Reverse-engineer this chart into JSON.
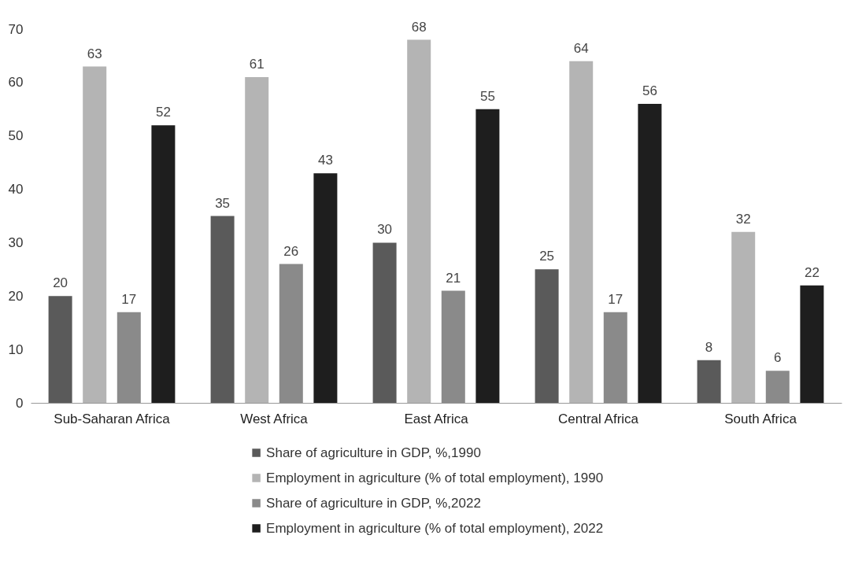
{
  "chart_data": {
    "type": "bar",
    "categories": [
      "Sub-Saharan Africa",
      "West Africa",
      "East Africa",
      "Central Africa",
      "South Africa"
    ],
    "series": [
      {
        "name": "Share of agriculture in GDP, %,1990",
        "color": "#5a5a5a",
        "values": [
          20,
          35,
          30,
          25,
          8
        ]
      },
      {
        "name": "Employment in agriculture (% of total employment), 1990",
        "color": "#b4b4b4",
        "values": [
          63,
          61,
          68,
          64,
          32
        ]
      },
      {
        "name": "Share of agriculture in GDP, %,2022",
        "color": "#8a8a8a",
        "values": [
          17,
          26,
          21,
          17,
          6
        ]
      },
      {
        "name": "Employment in agriculture (% of total employment), 2022",
        "color": "#1e1e1e",
        "values": [
          52,
          43,
          55,
          56,
          22
        ]
      }
    ],
    "ylim": [
      0,
      70
    ],
    "yticks": [
      0,
      10,
      20,
      30,
      40,
      50,
      60,
      70
    ],
    "grid": false,
    "legend": "bottom",
    "data_labels": true
  }
}
